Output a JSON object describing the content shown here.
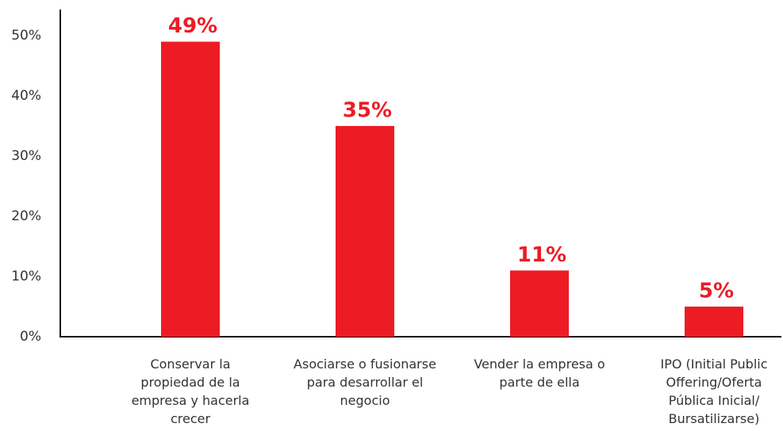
{
  "chart_data": {
    "type": "bar",
    "categories": [
      "Conservar la propiedad de la empresa y hacerla crecer",
      "Asociarse o fusionarse para desarrollar el negocio",
      "Vender la empresa o parte de ella",
      "IPO (Initial Public Offering/Oferta Pública Inicial/ Bursatilizarse)"
    ],
    "values": [
      49,
      35,
      11,
      5
    ],
    "value_labels": [
      "49%",
      "35%",
      "11%",
      "5%"
    ],
    "color": "#ed1c24",
    "ylim": [
      0,
      50
    ],
    "yticks": [
      {
        "value": 0,
        "label": "0%"
      },
      {
        "value": 10,
        "label": "10%"
      },
      {
        "value": 20,
        "label": "20%"
      },
      {
        "value": 30,
        "label": "30%"
      },
      {
        "value": 40,
        "label": "40%"
      },
      {
        "value": 50,
        "label": "50%"
      }
    ],
    "grid": false
  }
}
